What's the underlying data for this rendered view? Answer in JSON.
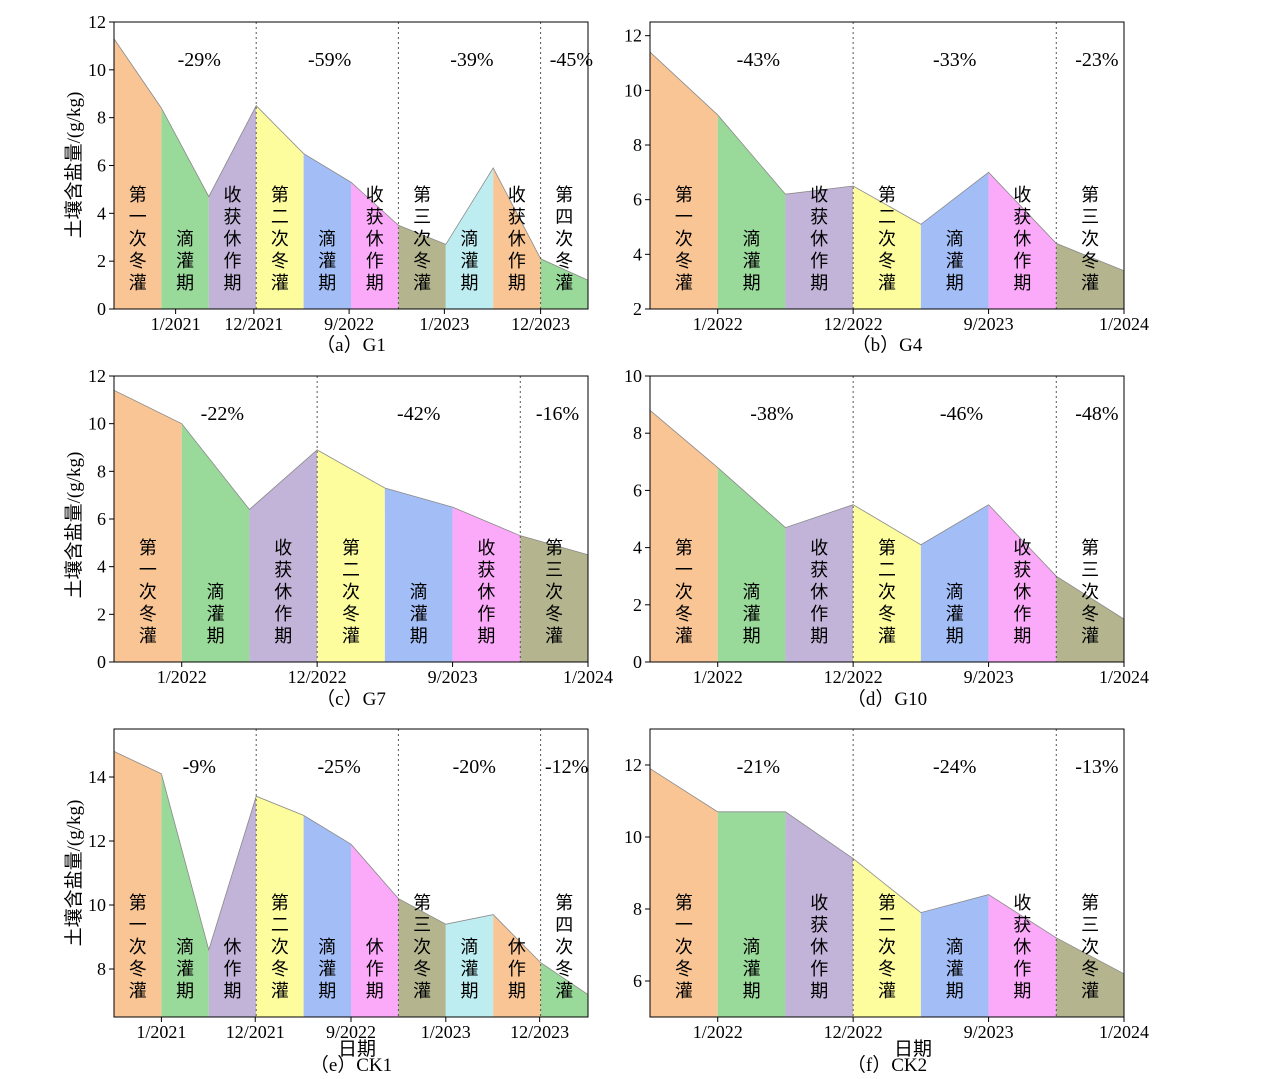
{
  "figure": {
    "ylabel": "土壤含盐量/(g/kg)",
    "xlabel": "日期"
  },
  "segment_colors": {
    "orange": "#F9C595",
    "green": "#99D99A",
    "purple": "#C2B3D8",
    "yellow": "#FDFD9D",
    "blue": "#A3BEF6",
    "pink": "#FBAAF9",
    "olive": "#B4B58F",
    "cyan": "#BDEDF0"
  },
  "chart_data": [
    {
      "type": "area",
      "caption": "（a）G1",
      "ylim": [
        0,
        12
      ],
      "yticks": [
        0,
        2,
        4,
        6,
        8,
        10,
        12
      ],
      "xticks": [
        "1/2021",
        "12/2021",
        "9/2022",
        "1/2023",
        "12/2023"
      ],
      "x": [
        0,
        1,
        2,
        3,
        4,
        5,
        6,
        7,
        8,
        9,
        10
      ],
      "y": [
        11.3,
        8.4,
        4.7,
        8.5,
        6.5,
        5.3,
        3.5,
        2.7,
        5.9,
        2.1,
        1.2
      ],
      "segments": [
        {
          "label": "第一次冬灌",
          "color": "orange"
        },
        {
          "label": "滴灌期",
          "color": "green"
        },
        {
          "label": "收获休作期",
          "color": "purple"
        },
        {
          "label": "第二次冬灌",
          "color": "yellow"
        },
        {
          "label": "滴灌期",
          "color": "blue"
        },
        {
          "label": "收获休作期",
          "color": "pink"
        },
        {
          "label": "第三次冬灌",
          "color": "olive"
        },
        {
          "label": "滴灌期",
          "color": "cyan"
        },
        {
          "label": "收获休作期",
          "color": "orange"
        },
        {
          "label": "第四次冬灌",
          "color": "green"
        }
      ],
      "reductions": [
        "-29%",
        "-59%",
        "-39%",
        "-45%"
      ]
    },
    {
      "type": "area",
      "caption": "（b）G4",
      "ylim": [
        2,
        12.5
      ],
      "yticks": [
        2,
        4,
        6,
        8,
        10,
        12
      ],
      "xticks": [
        "1/2022",
        "12/2022",
        "9/2023",
        "1/2024"
      ],
      "x": [
        0,
        1,
        2,
        3,
        4,
        5,
        6,
        7
      ],
      "y": [
        11.4,
        9.1,
        6.2,
        6.5,
        5.1,
        7.0,
        4.4,
        3.4
      ],
      "segments": [
        {
          "label": "第一次冬灌",
          "color": "orange"
        },
        {
          "label": "滴灌期",
          "color": "green"
        },
        {
          "label": "收获休作期",
          "color": "purple"
        },
        {
          "label": "第二次冬灌",
          "color": "yellow"
        },
        {
          "label": "滴灌期",
          "color": "blue"
        },
        {
          "label": "收获休作期",
          "color": "pink"
        },
        {
          "label": "第三次冬灌",
          "color": "olive"
        }
      ],
      "reductions": [
        "-43%",
        "-33%",
        "-23%"
      ]
    },
    {
      "type": "area",
      "caption": "（c）G7",
      "ylim": [
        0,
        12
      ],
      "yticks": [
        0,
        2,
        4,
        6,
        8,
        10,
        12
      ],
      "xticks": [
        "1/2022",
        "12/2022",
        "9/2023",
        "1/2024"
      ],
      "x": [
        0,
        1,
        2,
        3,
        4,
        5,
        6,
        7
      ],
      "y": [
        11.4,
        10.0,
        6.4,
        8.9,
        7.3,
        6.5,
        5.3,
        4.5
      ],
      "segments": [
        {
          "label": "第一次冬灌",
          "color": "orange"
        },
        {
          "label": "滴灌期",
          "color": "green"
        },
        {
          "label": "收获休作期",
          "color": "purple"
        },
        {
          "label": "第二次冬灌",
          "color": "yellow"
        },
        {
          "label": "滴灌期",
          "color": "blue"
        },
        {
          "label": "收获休作期",
          "color": "pink"
        },
        {
          "label": "第三次冬灌",
          "color": "olive"
        }
      ],
      "reductions": [
        "-22%",
        "-42%",
        "-16%"
      ]
    },
    {
      "type": "area",
      "caption": "（d）G10",
      "ylim": [
        0,
        10
      ],
      "yticks": [
        0,
        2,
        4,
        6,
        8,
        10
      ],
      "xticks": [
        "1/2022",
        "12/2022",
        "9/2023",
        "1/2024"
      ],
      "x": [
        0,
        1,
        2,
        3,
        4,
        5,
        6,
        7
      ],
      "y": [
        8.8,
        6.8,
        4.7,
        5.5,
        4.1,
        5.5,
        3.0,
        1.5
      ],
      "segments": [
        {
          "label": "第一次冬灌",
          "color": "orange"
        },
        {
          "label": "滴灌期",
          "color": "green"
        },
        {
          "label": "收获休作期",
          "color": "purple"
        },
        {
          "label": "第二次冬灌",
          "color": "yellow"
        },
        {
          "label": "滴灌期",
          "color": "blue"
        },
        {
          "label": "收获休作期",
          "color": "pink"
        },
        {
          "label": "第三次冬灌",
          "color": "olive"
        }
      ],
      "reductions": [
        "-38%",
        "-46%",
        "-48%"
      ]
    },
    {
      "type": "area",
      "caption": "（e）CK1",
      "ylim": [
        6.5,
        15.5
      ],
      "yticks": [
        8,
        10,
        12,
        14
      ],
      "xticks": [
        "1/2021",
        "12/2021",
        "9/2022",
        "1/2023",
        "12/2023"
      ],
      "x": [
        0,
        1,
        2,
        3,
        4,
        5,
        6,
        7,
        8,
        9,
        10
      ],
      "y": [
        14.8,
        14.1,
        8.6,
        13.4,
        12.8,
        11.9,
        10.2,
        9.4,
        9.7,
        8.2,
        7.2
      ],
      "segments": [
        {
          "label": "第一次冬灌",
          "color": "orange"
        },
        {
          "label": "滴灌期",
          "color": "green"
        },
        {
          "label": "休作期",
          "color": "purple"
        },
        {
          "label": "第二次冬灌",
          "color": "yellow"
        },
        {
          "label": "滴灌期",
          "color": "blue"
        },
        {
          "label": "休作期",
          "color": "pink"
        },
        {
          "label": "第三次冬灌",
          "color": "olive"
        },
        {
          "label": "滴灌期",
          "color": "cyan"
        },
        {
          "label": "休作期",
          "color": "orange"
        },
        {
          "label": "第四次冬灌",
          "color": "green"
        }
      ],
      "reductions": [
        "-9%",
        "-25%",
        "-20%",
        "-12%"
      ]
    },
    {
      "type": "area",
      "caption": "（f）CK2",
      "ylim": [
        5,
        13
      ],
      "yticks": [
        6,
        8,
        10,
        12
      ],
      "xticks": [
        "1/2022",
        "12/2022",
        "9/2023",
        "1/2024"
      ],
      "x": [
        0,
        1,
        2,
        3,
        4,
        5,
        6,
        7
      ],
      "y": [
        11.9,
        10.7,
        10.7,
        9.4,
        7.9,
        8.4,
        7.2,
        6.2
      ],
      "segments": [
        {
          "label": "第一次冬灌",
          "color": "orange"
        },
        {
          "label": "滴灌期",
          "color": "green"
        },
        {
          "label": "收获休作期",
          "color": "purple"
        },
        {
          "label": "第二次冬灌",
          "color": "yellow"
        },
        {
          "label": "滴灌期",
          "color": "blue"
        },
        {
          "label": "收获休作期",
          "color": "pink"
        },
        {
          "label": "第三次冬灌",
          "color": "olive"
        }
      ],
      "reductions": [
        "-21%",
        "-24%",
        "-13%"
      ]
    }
  ]
}
